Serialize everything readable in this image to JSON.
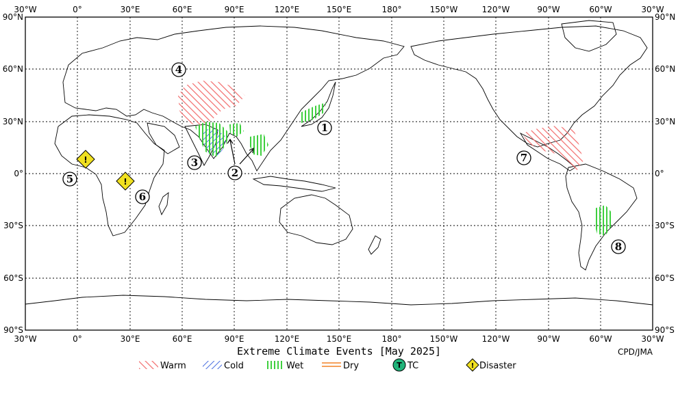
{
  "title": "Extreme Climate Events [May 2025]",
  "credit": "CPD/JMA",
  "top_lon_labels": [
    "30°W",
    "0°",
    "30°E",
    "60°E",
    "90°E",
    "120°E",
    "150°E",
    "180°",
    "150°W",
    "120°W",
    "90°W",
    "60°W",
    "30°W"
  ],
  "bottom_lon_labels": [
    "30°W",
    "0°",
    "30°E",
    "60°E",
    "90°E",
    "120°E",
    "150°E",
    "180°",
    "150°W",
    "120°W",
    "90°W",
    "60°W",
    "30°W"
  ],
  "left_lat_labels": [
    "90°N",
    "60°N",
    "30°N",
    "0°",
    "30°S",
    "60°S",
    "90°S"
  ],
  "right_lat_labels": [
    "90°N",
    "60°N",
    "30°N",
    "0°",
    "30°S",
    "60°S",
    "90°S"
  ],
  "legend": [
    {
      "label": "Warm",
      "pattern": "warm",
      "color": "#f26b6b"
    },
    {
      "label": "Cold",
      "pattern": "cold",
      "color": "#4a6fe0"
    },
    {
      "label": "Wet",
      "pattern": "wet",
      "color": "#3ecf3e"
    },
    {
      "label": "Dry",
      "pattern": "dry",
      "color": "#f5a05a"
    },
    {
      "label": "TC",
      "pattern": "tc",
      "color": "#21b47a",
      "symbol": "T"
    },
    {
      "label": "Disaster",
      "pattern": "disaster",
      "color": "#f0e020",
      "symbol": "!"
    }
  ],
  "events": [
    {
      "id": "1",
      "label": "①"
    },
    {
      "id": "2",
      "label": "②"
    },
    {
      "id": "3",
      "label": "③"
    },
    {
      "id": "4",
      "label": "④"
    },
    {
      "id": "5",
      "label": "⑤"
    },
    {
      "id": "6",
      "label": "⑥"
    },
    {
      "id": "7",
      "label": "⑦"
    },
    {
      "id": "8",
      "label": "⑧"
    }
  ],
  "disaster_markers": [
    {
      "event": "5",
      "symbol": "!"
    },
    {
      "event": "6",
      "symbol": "!"
    }
  ]
}
